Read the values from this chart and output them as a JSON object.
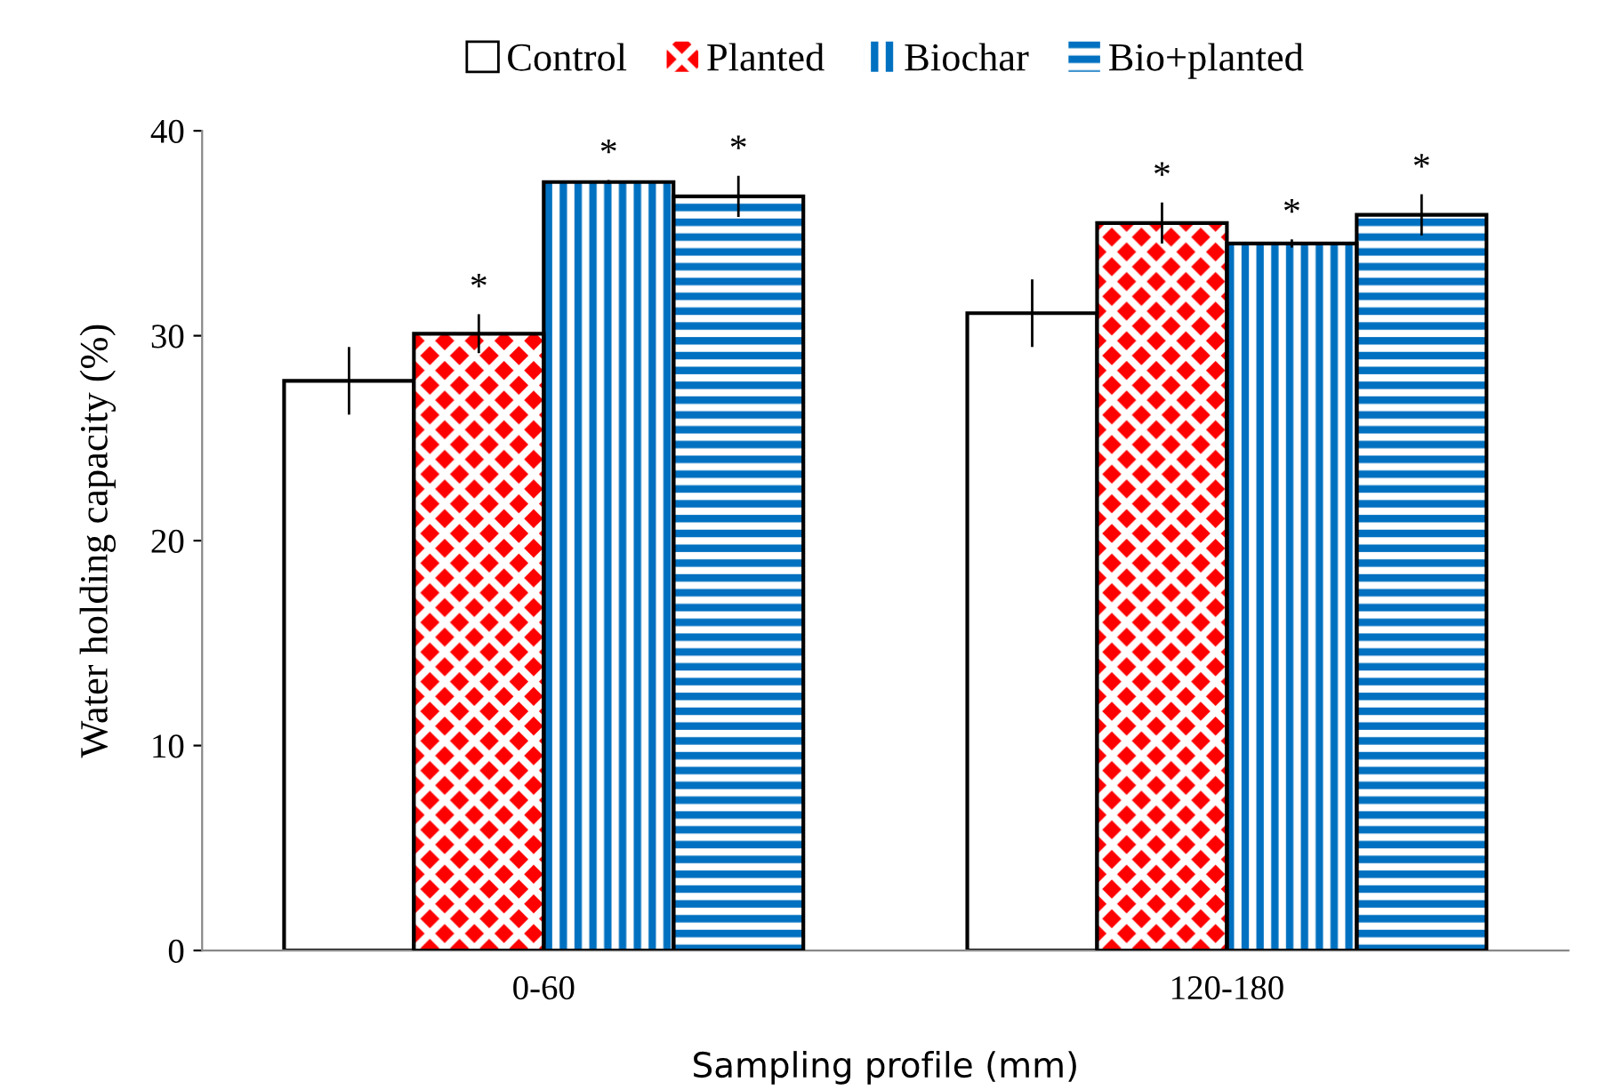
{
  "chart_data": {
    "type": "bar",
    "xlabel": "Sampling profile (mm)",
    "ylabel": "Water holding capacity (%)",
    "categories": [
      "0-60",
      "120-180"
    ],
    "series": [
      {
        "name": "Control",
        "color": "#ffffff",
        "values": [
          27.8,
          31.1
        ],
        "errors": [
          1.65,
          1.65
        ],
        "value_labels": [
          null,
          null
        ]
      },
      {
        "name": "Planted",
        "color": "#ff0000",
        "values": [
          30.1,
          35.5
        ],
        "errors": [
          0.95,
          1.0
        ],
        "value_labels": [
          "*",
          "*"
        ]
      },
      {
        "name": "Biochar",
        "color": "#0070c0",
        "values": [
          37.5,
          34.5
        ],
        "errors": [
          0.1,
          0.2
        ],
        "value_labels": [
          "*",
          "*"
        ]
      },
      {
        "name": "Bio+planted",
        "color": "#0070c0",
        "values": [
          36.8,
          35.9
        ],
        "errors": [
          1.0,
          1.0
        ],
        "value_labels": [
          "*",
          "*"
        ]
      }
    ],
    "ylim": [
      0,
      40
    ],
    "yticks": [
      0,
      10,
      20,
      30,
      40
    ],
    "grid": false,
    "legend": "top"
  }
}
